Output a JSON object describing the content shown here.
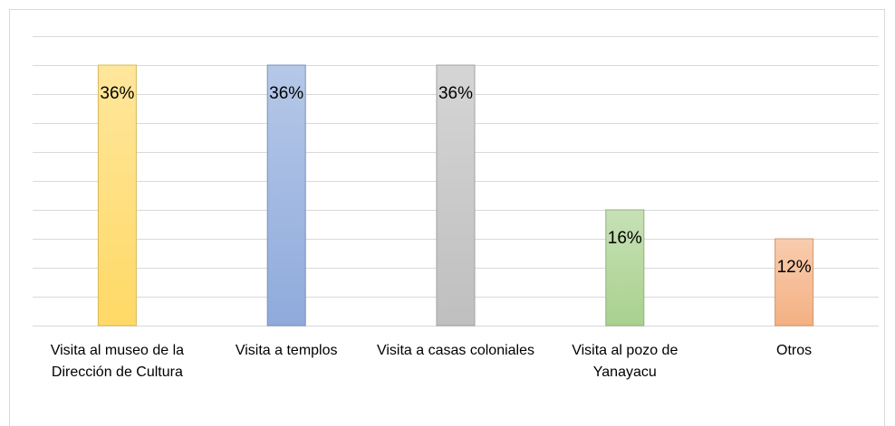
{
  "chart_data": {
    "type": "bar",
    "categories": [
      "Visita al museo de la Dirección de Cultura",
      "Visita a templos",
      "Visita a casas coloniales",
      "Visita al pozo de Yanayacu",
      "Otros"
    ],
    "values": [
      36,
      36,
      36,
      16,
      12
    ],
    "value_labels": [
      "36%",
      "36%",
      "36%",
      "16%",
      "12%"
    ],
    "colors": [
      "#ffd966",
      "#8faadc",
      "#bfbfbf",
      "#a9d18e",
      "#f4b183"
    ],
    "ylim": [
      0,
      40
    ],
    "yticks": [
      0,
      4,
      8,
      12,
      16,
      20,
      24,
      28,
      32,
      36,
      40
    ],
    "grid": true
  }
}
